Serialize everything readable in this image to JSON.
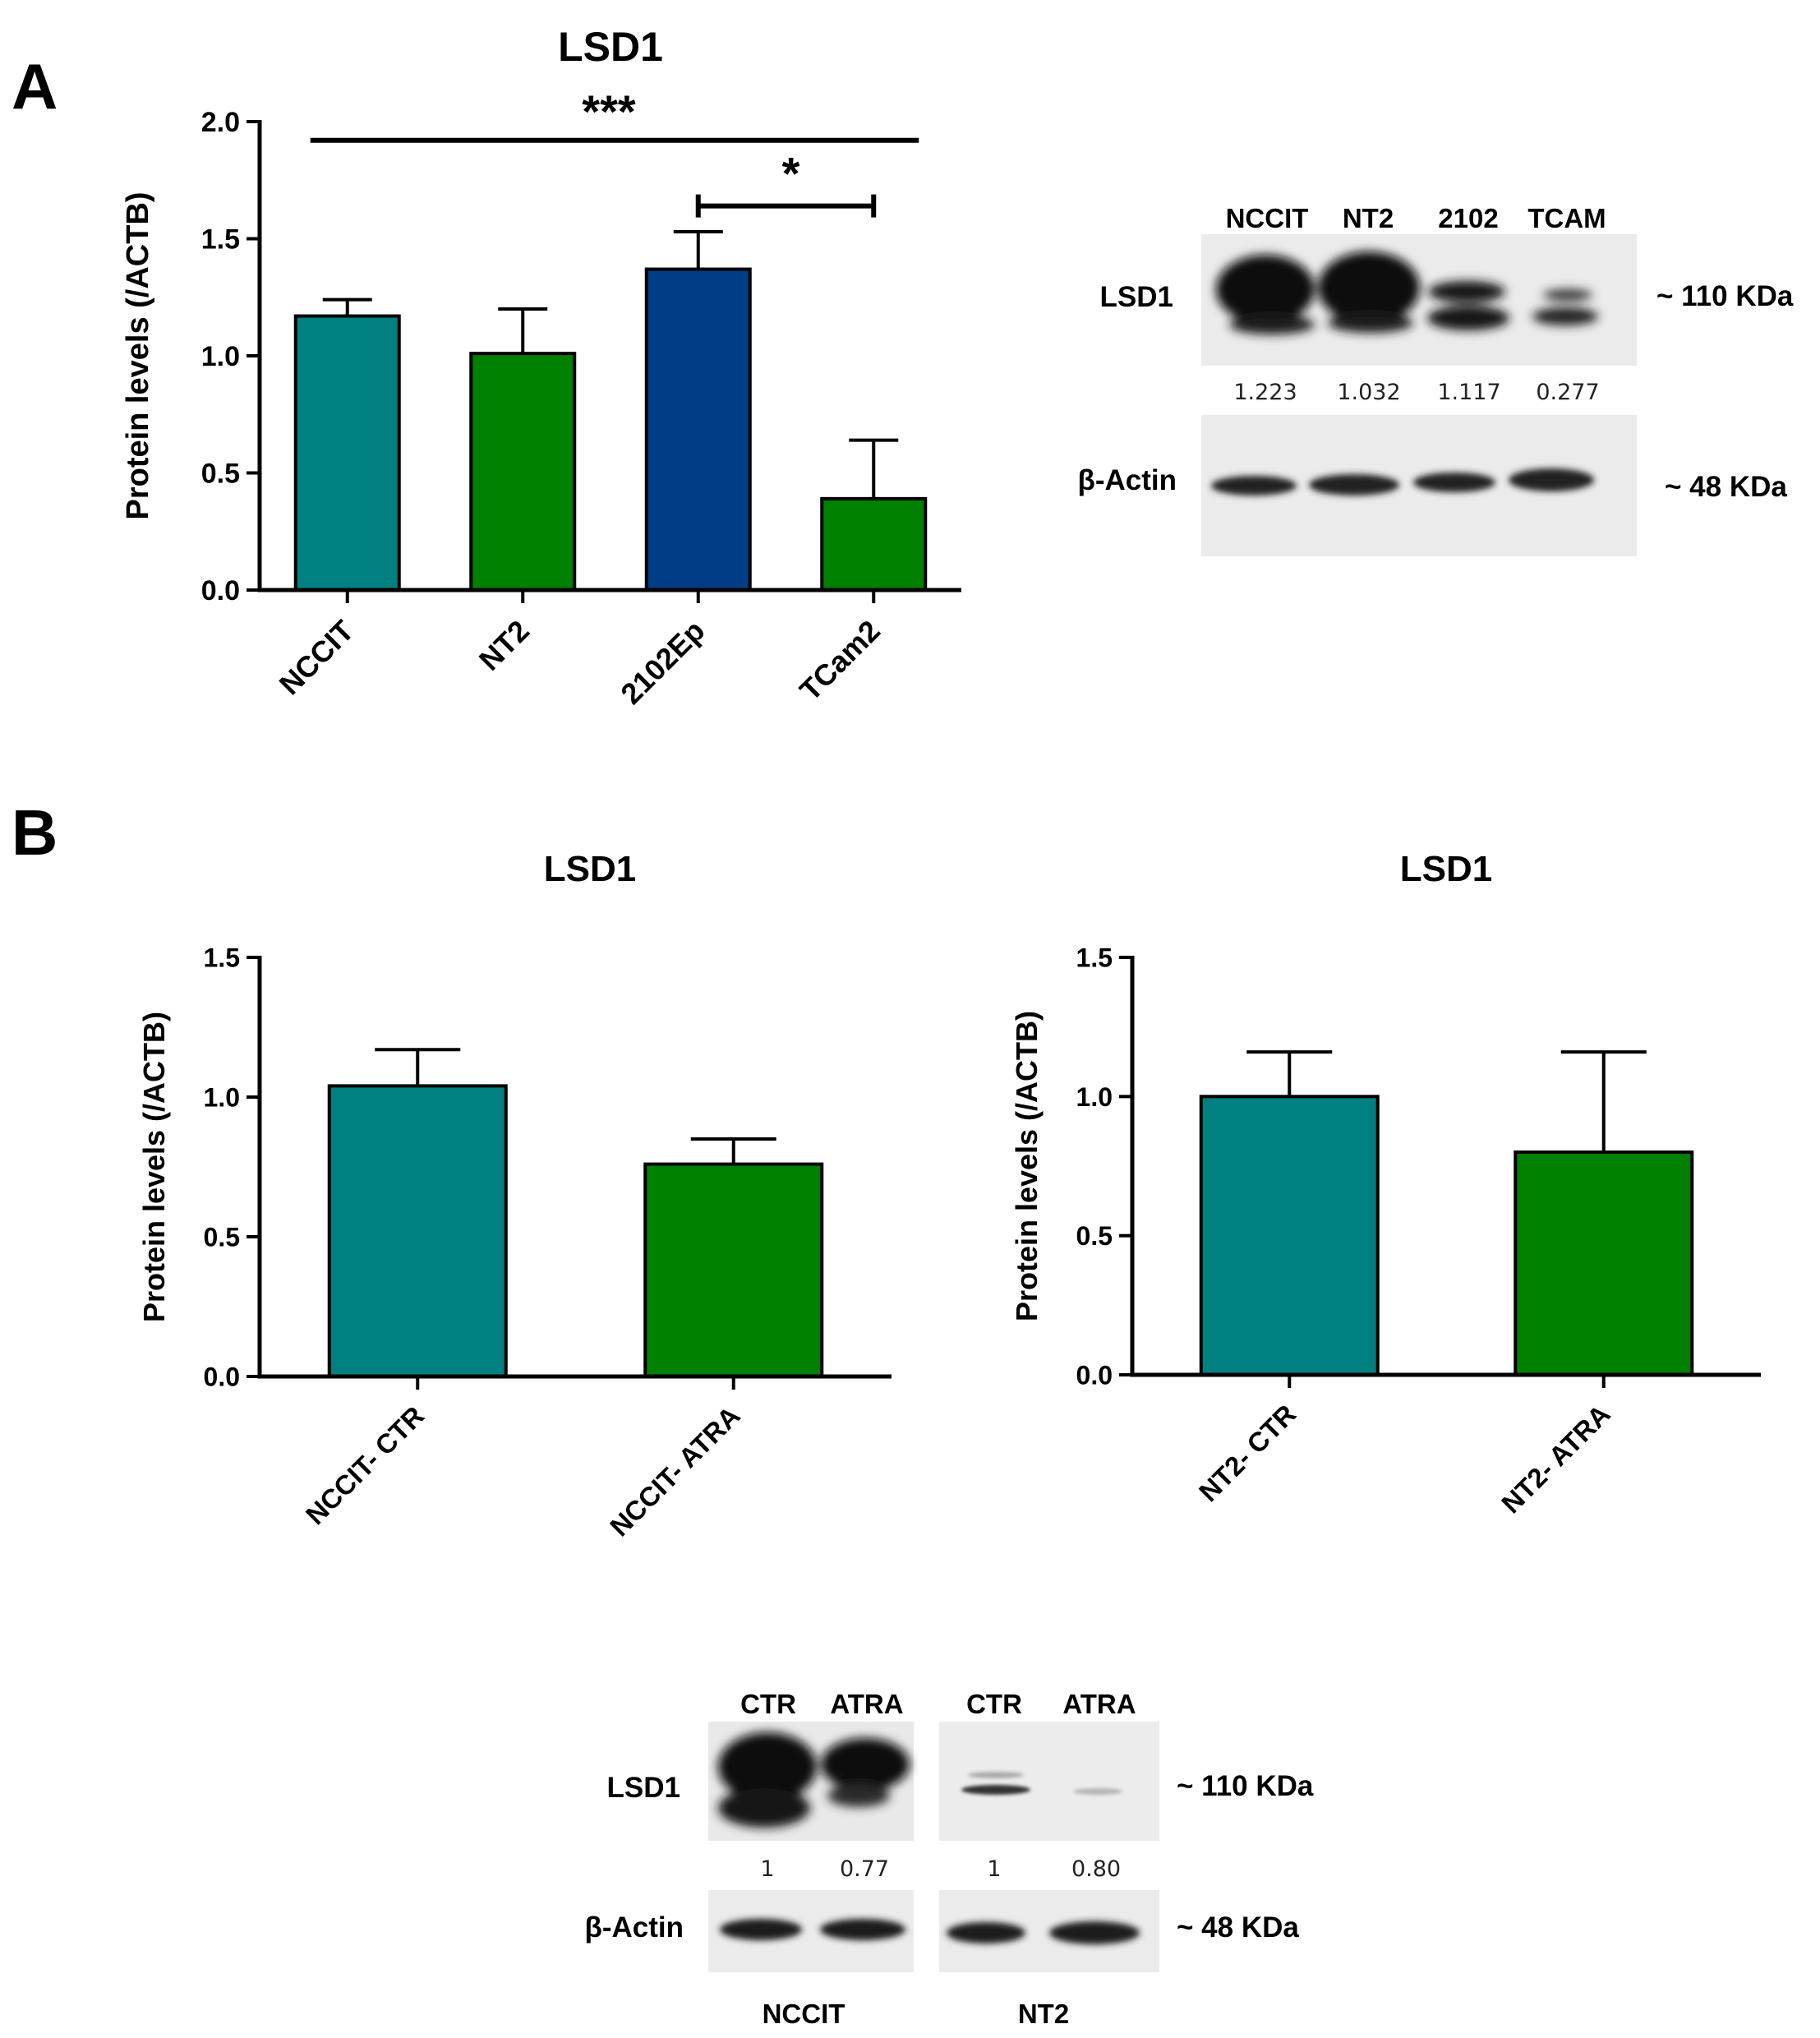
{
  "panel_labels": {
    "a": "A",
    "b": "B"
  },
  "colors": {
    "teal": "#008080",
    "green": "#008000",
    "navy": "#003d87",
    "axis": "#000000"
  },
  "chart_data": [
    {
      "id": "a",
      "type": "bar",
      "title": "LSD1",
      "ylabel": "Protein levels  (/ACTB)",
      "xlabel": "",
      "ylim": [
        0,
        2.0
      ],
      "yticks": [
        "0.0",
        "0.5",
        "1.0",
        "1.5",
        "2.0"
      ],
      "categories": [
        "NCCIT",
        "NT2",
        "2102Ep",
        "TCam2"
      ],
      "values": [
        1.17,
        1.01,
        1.37,
        0.39
      ],
      "errors": [
        0.07,
        0.19,
        0.16,
        0.25
      ],
      "bar_colors": [
        "teal",
        "green",
        "navy",
        "green"
      ],
      "grid": false,
      "significance": [
        {
          "label": "***",
          "from": 0,
          "to": 3,
          "y": 1.92,
          "ticks": false
        },
        {
          "label": "*",
          "from": 2,
          "to": 3,
          "y": 1.64,
          "ticks": true
        }
      ]
    },
    {
      "id": "b1",
      "type": "bar",
      "title": "LSD1",
      "ylabel": "Protein levels  (/ACTB)",
      "xlabel": "",
      "ylim": [
        0,
        1.5
      ],
      "yticks": [
        "0.0",
        "0.5",
        "1.0",
        "1.5"
      ],
      "categories": [
        "NCCIT- CTR",
        "NCCIT- ATRA"
      ],
      "values": [
        1.04,
        0.76
      ],
      "errors": [
        0.13,
        0.09
      ],
      "bar_colors": [
        "teal",
        "green"
      ],
      "grid": false
    },
    {
      "id": "b2",
      "type": "bar",
      "title": "LSD1",
      "ylabel": "Protein levels  (/ACTB)",
      "xlabel": "",
      "ylim": [
        0,
        1.5
      ],
      "yticks": [
        "0.0",
        "0.5",
        "1.0",
        "1.5"
      ],
      "categories": [
        "NT2- CTR",
        "NT2- ATRA"
      ],
      "values": [
        1.0,
        0.8
      ],
      "errors": [
        0.16,
        0.36
      ],
      "bar_colors": [
        "teal",
        "green"
      ],
      "grid": false
    }
  ],
  "blot_a": {
    "lanes": [
      "NCCIT",
      "NT2",
      "2102",
      "TCAM"
    ],
    "target_label": "LSD1",
    "target_size": "~ 110 KDa",
    "quantification": [
      "1.223",
      "1.032",
      "1.117",
      "0.277"
    ],
    "control_label": "β-Actin",
    "control_size": "~ 48 KDa"
  },
  "blot_b": {
    "lanes": [
      "CTR",
      "ATRA",
      "CTR",
      "ATRA"
    ],
    "target_label": "LSD1",
    "target_size": "~ 110 KDa",
    "quantification": [
      "1",
      "0.77",
      "1",
      "0.80"
    ],
    "control_label": "β-Actin",
    "control_size": "~ 48 KDa",
    "groups": [
      "NCCIT",
      "NT2"
    ]
  }
}
